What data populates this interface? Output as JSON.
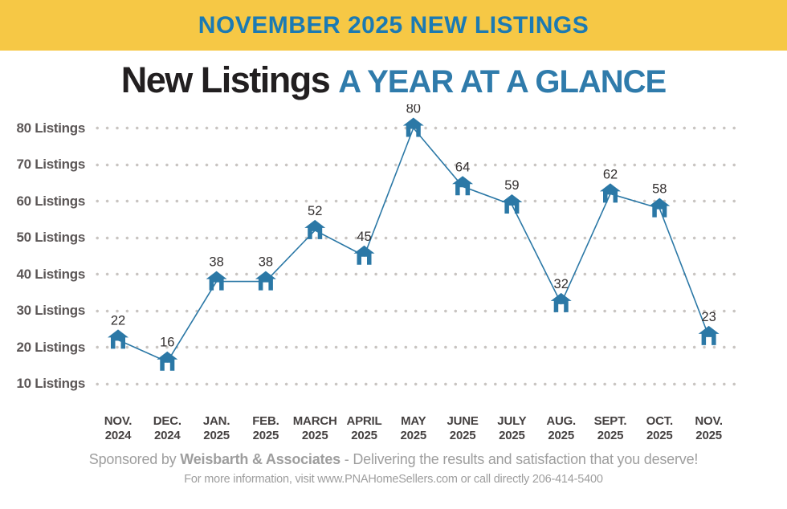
{
  "banner": {
    "label": "NOVEMBER 2025 NEW LISTINGS",
    "background_color": "#F6C845",
    "text_color": "#1B7AB3"
  },
  "title": {
    "main": "New Listings",
    "accent": "A YEAR AT A GLANCE",
    "main_color": "#221F20",
    "accent_color": "#2F7BAB"
  },
  "chart_data": {
    "type": "line",
    "title": "New Listings - A Year at a Glance",
    "series_name": "New Listings",
    "categories": [
      "NOV. 2024",
      "DEC. 2024",
      "JAN. 2025",
      "FEB. 2025",
      "MARCH 2025",
      "APRIL 2025",
      "MAY 2025",
      "JUNE 2025",
      "JULY 2025",
      "AUG. 2025",
      "SEPT. 2025",
      "OCT. 2025",
      "NOV. 2025"
    ],
    "x_labels_two_line": [
      [
        "NOV.",
        "2024"
      ],
      [
        "DEC.",
        "2024"
      ],
      [
        "JAN.",
        "2025"
      ],
      [
        "FEB.",
        "2025"
      ],
      [
        "MARCH",
        "2025"
      ],
      [
        "APRIL",
        "2025"
      ],
      [
        "MAY",
        "2025"
      ],
      [
        "JUNE",
        "2025"
      ],
      [
        "JULY",
        "2025"
      ],
      [
        "AUG.",
        "2025"
      ],
      [
        "SEPT.",
        "2025"
      ],
      [
        "OCT.",
        "2025"
      ],
      [
        "NOV.",
        "2025"
      ]
    ],
    "values": [
      22,
      16,
      38,
      38,
      52,
      45,
      80,
      64,
      59,
      32,
      62,
      58,
      23
    ],
    "point_labels_shown": true,
    "yticks": [
      80,
      70,
      60,
      50,
      40,
      30,
      20,
      10
    ],
    "ytick_label_suffix": " Listings",
    "ylim": [
      10,
      80
    ],
    "grid": "dotted-horizontal",
    "legend": "none",
    "marker": "house-icon",
    "line_color": "#2B78A6",
    "marker_color": "#2B78A6",
    "grid_dot_color": "#C8C4C1",
    "value_label_color": "#332F2F",
    "ytick_color": "#5B5656",
    "xtick_color": "#454141"
  },
  "footer": {
    "sponsored_prefix": "Sponsored by ",
    "sponsor_name": "Weisbarth & Associates",
    "sponsored_suffix": " - Delivering the results and satisfaction that you deserve!",
    "info_line": "For more information, visit www.PNAHomeSellers.com or call directly 206-414-5400"
  }
}
